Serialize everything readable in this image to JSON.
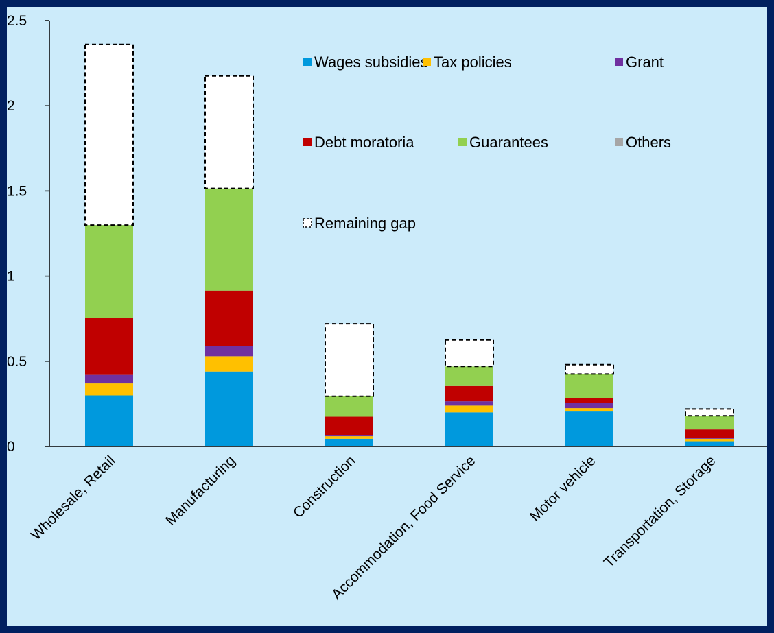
{
  "chart_data": {
    "type": "bar",
    "stacked": true,
    "title": "",
    "xlabel": "",
    "ylabel": "",
    "ylim": [
      0,
      2.5
    ],
    "yticks": [
      "0",
      "0.5",
      "1",
      "1.5",
      "2",
      "2.5"
    ],
    "grid": false,
    "legend_position": "top-right",
    "categories": [
      "Wholesale, Retail",
      "Manufacturing",
      "Construction",
      "Accommodation, Food Service",
      "Motor vehicle",
      "Transportation, Storage"
    ],
    "series": [
      {
        "name": "Wages subsidies",
        "color": "#0099DD",
        "values": [
          0.3,
          0.44,
          0.045,
          0.2,
          0.205,
          0.03
        ]
      },
      {
        "name": "Tax policies",
        "color": "#FFC000",
        "values": [
          0.07,
          0.09,
          0.015,
          0.04,
          0.02,
          0.015
        ]
      },
      {
        "name": "Grant",
        "color": "#7030A0",
        "values": [
          0.05,
          0.06,
          0.005,
          0.025,
          0.03,
          0.005
        ]
      },
      {
        "name": "Debt moratoria",
        "color": "#C00000",
        "values": [
          0.335,
          0.325,
          0.11,
          0.09,
          0.03,
          0.05
        ]
      },
      {
        "name": "Guarantees",
        "color": "#92D050",
        "values": [
          0.545,
          0.6,
          0.12,
          0.115,
          0.14,
          0.08
        ]
      },
      {
        "name": "Others",
        "color": "#A6A6A6",
        "values": [
          0.0,
          0.0,
          0.0,
          0.0,
          0.0,
          0.0
        ]
      },
      {
        "name": "Remaining gap",
        "color": "#FFFFFF",
        "dashed": true,
        "values": [
          1.06,
          0.66,
          0.425,
          0.155,
          0.055,
          0.04
        ]
      }
    ]
  }
}
